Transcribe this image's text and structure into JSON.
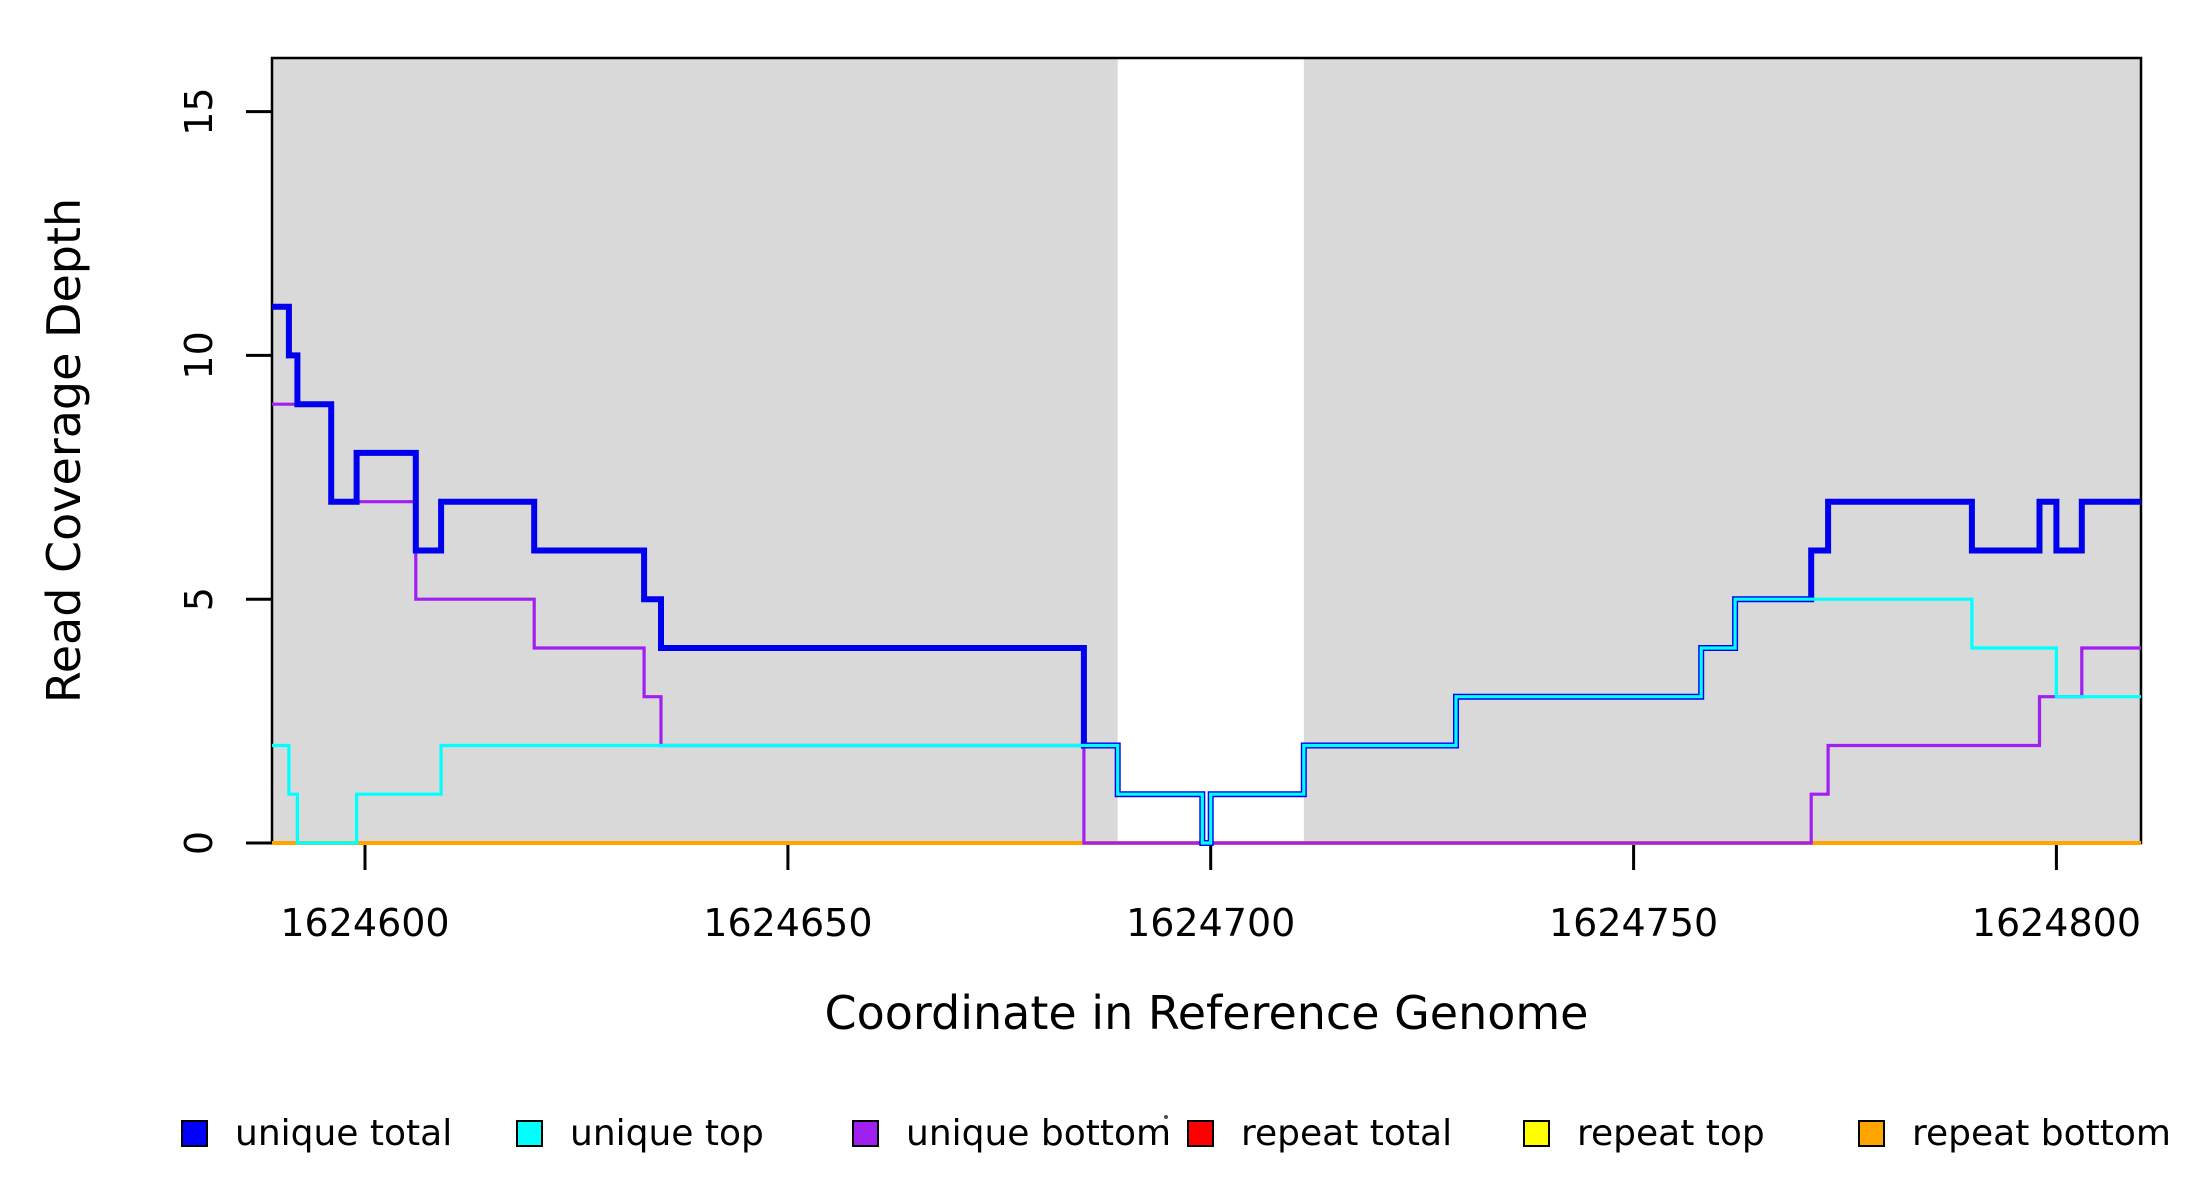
{
  "figure": {
    "x_axis": {
      "label": "Coordinate in Reference Genome",
      "ticks": [
        "1624600",
        "1624650",
        "1624700",
        "1624750",
        "1624800"
      ]
    },
    "y_axis": {
      "label": "Read Coverage Depth",
      "ticks": [
        "0",
        "5",
        "10",
        "15"
      ]
    }
  },
  "chart_data": {
    "type": "line",
    "subtype": "step-coverage-plot",
    "title": "",
    "xlabel": "Coordinate in Reference Genome",
    "ylabel": "Read Coverage Depth",
    "x_range": [
      1624589,
      1624810
    ],
    "y_range": [
      0,
      16.1
    ],
    "x_ticks": [
      1624600,
      1624650,
      1624700,
      1624750,
      1624800
    ],
    "y_ticks": [
      0,
      5,
      10,
      15
    ],
    "grid": false,
    "legend_position": "bottom",
    "background_shading": {
      "color": "#d9d9d9",
      "regions": [
        [
          1624589,
          1624689
        ],
        [
          1624711,
          1624810
        ]
      ]
    },
    "draw_order": [
      "repeat total",
      "repeat top",
      "repeat bottom",
      "unique bottom",
      "unique total",
      "unique top"
    ],
    "series": [
      {
        "name": "unique total",
        "color": "#0000ee",
        "width": 6,
        "steps": [
          [
            1624589,
            11
          ],
          [
            1624591,
            10
          ],
          [
            1624592,
            9
          ],
          [
            1624596,
            7
          ],
          [
            1624599,
            8
          ],
          [
            1624606,
            6
          ],
          [
            1624609,
            7
          ],
          [
            1624620,
            6
          ],
          [
            1624633,
            5
          ],
          [
            1624635,
            4
          ],
          [
            1624685,
            2
          ],
          [
            1624689,
            1
          ],
          [
            1624699,
            0
          ],
          [
            1624700,
            1
          ],
          [
            1624711,
            2
          ],
          [
            1624729,
            3
          ],
          [
            1624758,
            4
          ],
          [
            1624762,
            5
          ],
          [
            1624771,
            6
          ],
          [
            1624773,
            7
          ],
          [
            1624790,
            6
          ],
          [
            1624798,
            7
          ],
          [
            1624800,
            6
          ],
          [
            1624803,
            7
          ]
        ]
      },
      {
        "name": "unique top",
        "color": "#00ffff",
        "width": 3.2,
        "steps": [
          [
            1624589,
            2
          ],
          [
            1624591,
            1
          ],
          [
            1624592,
            0
          ],
          [
            1624599,
            1
          ],
          [
            1624609,
            2
          ],
          [
            1624689,
            1
          ],
          [
            1624699,
            0
          ],
          [
            1624700,
            1
          ],
          [
            1624711,
            2
          ],
          [
            1624729,
            3
          ],
          [
            1624758,
            4
          ],
          [
            1624762,
            5
          ],
          [
            1624790,
            4
          ],
          [
            1624800,
            3
          ]
        ]
      },
      {
        "name": "unique bottom",
        "color": "#a020f0",
        "width": 3.2,
        "steps": [
          [
            1624589,
            9
          ],
          [
            1624596,
            7
          ],
          [
            1624606,
            5
          ],
          [
            1624620,
            4
          ],
          [
            1624633,
            3
          ],
          [
            1624635,
            2
          ],
          [
            1624685,
            0
          ],
          [
            1624771,
            1
          ],
          [
            1624773,
            2
          ],
          [
            1624798,
            3
          ],
          [
            1624803,
            4
          ]
        ]
      },
      {
        "name": "repeat total",
        "color": "#ff0000",
        "width": 3.2,
        "steps": [
          [
            1624589,
            0
          ]
        ]
      },
      {
        "name": "repeat top",
        "color": "#ffff00",
        "width": 3.2,
        "steps": [
          [
            1624589,
            0
          ]
        ]
      },
      {
        "name": "repeat bottom",
        "color": "#ffa500",
        "width": 4,
        "steps": [
          [
            1624589,
            0
          ]
        ]
      }
    ],
    "legend": {
      "items": [
        {
          "label": "unique total",
          "color": "#0000ff"
        },
        {
          "label": "unique top",
          "color": "#00ffff"
        },
        {
          "label": "unique bottom",
          "color": "#a020f0"
        },
        {
          "label": "repeat total",
          "color": "#ff0000"
        },
        {
          "label": "repeat top",
          "color": "#ffff00"
        },
        {
          "label": "repeat bottom",
          "color": "#ffa500"
        }
      ]
    }
  }
}
